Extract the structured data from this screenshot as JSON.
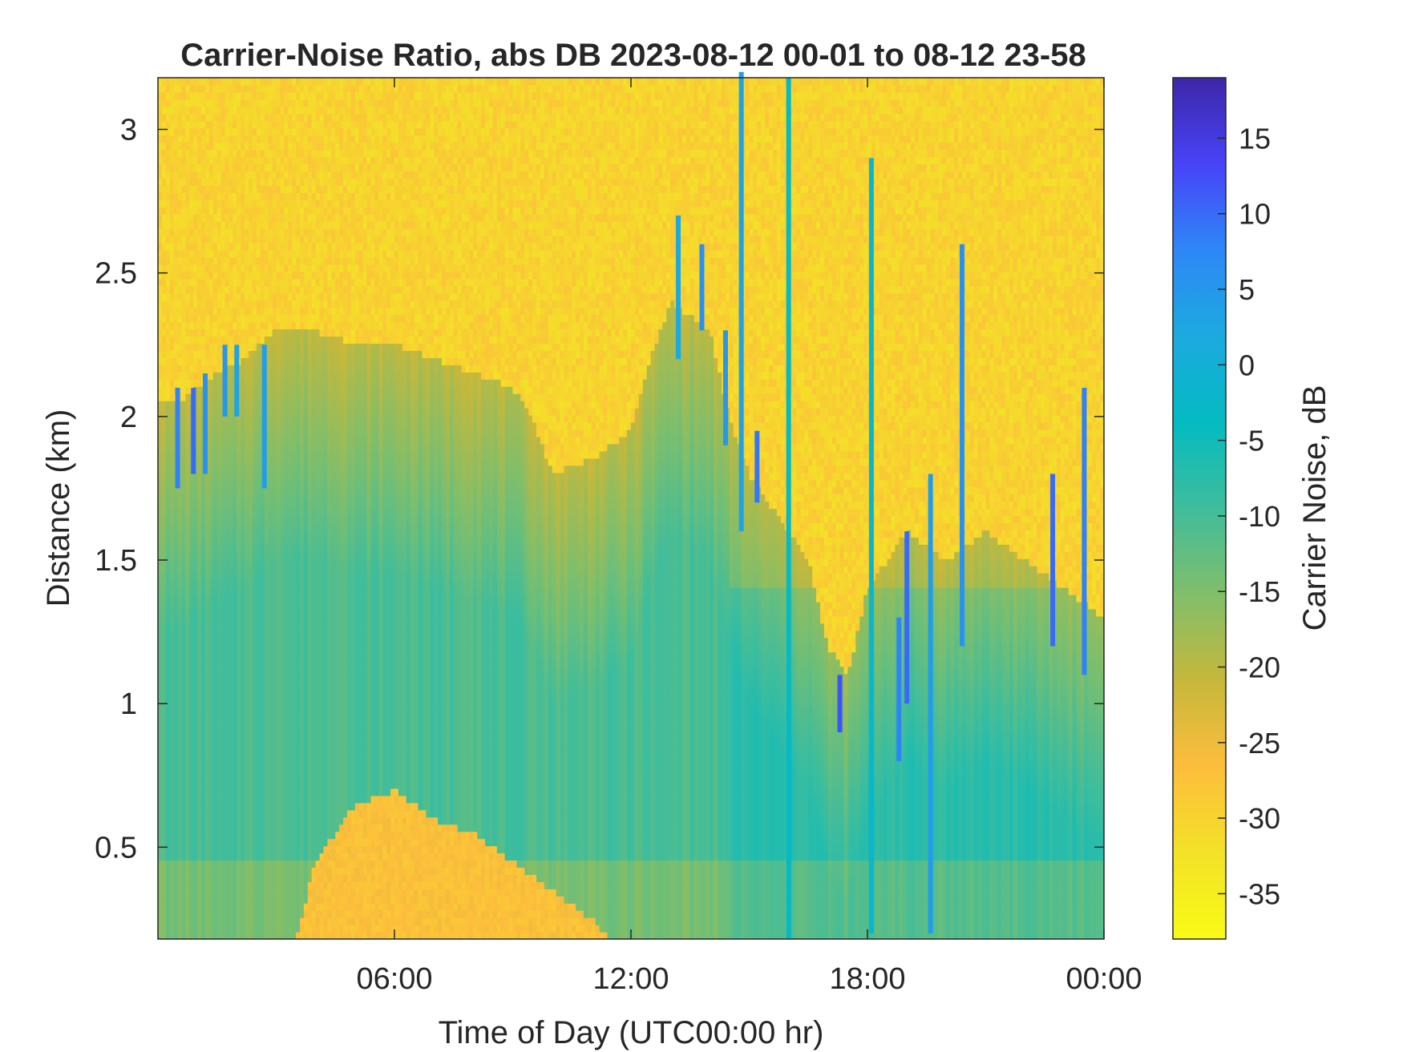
{
  "chart_data": {
    "type": "heatmap",
    "title": "Carrier-Noise Ratio, abs DB 2023-08-12 00-01 to 08-12 23-58",
    "xlabel": "Time of Day (UTC00:00 hr)",
    "ylabel": "Distance (km)",
    "colorbar_label": "Carrier Noise, dB",
    "xlim_hours": [
      0,
      24
    ],
    "ylim_km": [
      0.18,
      3.18
    ],
    "clim_db": [
      -38,
      19
    ],
    "xticks": [
      {
        "hour": 6,
        "label": "06:00"
      },
      {
        "hour": 12,
        "label": "12:00"
      },
      {
        "hour": 18,
        "label": "18:00"
      },
      {
        "hour": 24,
        "label": "00:00"
      }
    ],
    "yticks": [
      {
        "value": 0.5,
        "label": "0.5"
      },
      {
        "value": 1,
        "label": "1"
      },
      {
        "value": 1.5,
        "label": "1.5"
      },
      {
        "value": 2,
        "label": "2"
      },
      {
        "value": 2.5,
        "label": "2.5"
      },
      {
        "value": 3,
        "label": "3"
      }
    ],
    "colorbar_ticks": [
      {
        "value": 15,
        "label": "15"
      },
      {
        "value": 10,
        "label": "10"
      },
      {
        "value": 5,
        "label": "5"
      },
      {
        "value": 0,
        "label": "0"
      },
      {
        "value": -5,
        "label": "-5"
      },
      {
        "value": -10,
        "label": "-10"
      },
      {
        "value": -15,
        "label": "-15"
      },
      {
        "value": -20,
        "label": "-20"
      },
      {
        "value": -25,
        "label": "-25"
      },
      {
        "value": -30,
        "label": "-30"
      },
      {
        "value": -35,
        "label": "-35"
      }
    ],
    "colormap": "parula",
    "colormap_stops": [
      "#3e26a8",
      "#4743f7",
      "#2e87f7",
      "#1caadf",
      "#04bbc1",
      "#3fbd9c",
      "#81be6a",
      "#c6b83b",
      "#fdbd3c",
      "#f3e227",
      "#f9fb15"
    ],
    "signal_top_km": [
      {
        "hour": 0,
        "value": 2.05
      },
      {
        "hour": 0.5,
        "value": 2.05
      },
      {
        "hour": 1,
        "value": 2.1
      },
      {
        "hour": 1.5,
        "value": 2.15
      },
      {
        "hour": 2.2,
        "value": 2.2
      },
      {
        "hour": 3,
        "value": 2.3
      },
      {
        "hour": 4,
        "value": 2.3
      },
      {
        "hour": 5,
        "value": 2.25
      },
      {
        "hour": 6,
        "value": 2.25
      },
      {
        "hour": 7,
        "value": 2.2
      },
      {
        "hour": 8,
        "value": 2.15
      },
      {
        "hour": 9,
        "value": 2.1
      },
      {
        "hour": 9.5,
        "value": 2.0
      },
      {
        "hour": 10,
        "value": 1.8
      },
      {
        "hour": 11,
        "value": 1.85
      },
      {
        "hour": 12,
        "value": 1.95
      },
      {
        "hour": 12.5,
        "value": 2.2
      },
      {
        "hour": 13,
        "value": 2.4
      },
      {
        "hour": 14,
        "value": 2.3
      },
      {
        "hour": 14.5,
        "value": 2.0
      },
      {
        "hour": 15,
        "value": 1.8
      },
      {
        "hour": 15.5,
        "value": 1.7
      },
      {
        "hour": 16,
        "value": 1.6
      },
      {
        "hour": 16.5,
        "value": 1.5
      },
      {
        "hour": 17,
        "value": 1.2
      },
      {
        "hour": 17.5,
        "value": 1.1
      },
      {
        "hour": 18,
        "value": 1.4
      },
      {
        "hour": 18.5,
        "value": 1.5
      },
      {
        "hour": 19,
        "value": 1.6
      },
      {
        "hour": 20,
        "value": 1.5
      },
      {
        "hour": 21,
        "value": 1.6
      },
      {
        "hour": 22,
        "value": 1.5
      },
      {
        "hour": 23,
        "value": 1.4
      },
      {
        "hour": 24,
        "value": 1.3
      }
    ],
    "low_layer_top_km": [
      {
        "hour": 3.5,
        "value": 0.18
      },
      {
        "hour": 4,
        "value": 0.45
      },
      {
        "hour": 5,
        "value": 0.65
      },
      {
        "hour": 6,
        "value": 0.7
      },
      {
        "hour": 7,
        "value": 0.6
      },
      {
        "hour": 8,
        "value": 0.55
      },
      {
        "hour": 9,
        "value": 0.45
      },
      {
        "hour": 10,
        "value": 0.35
      },
      {
        "hour": 11,
        "value": 0.25
      },
      {
        "hour": 11.5,
        "value": 0.18
      }
    ],
    "spikes": [
      {
        "hour": 0.5,
        "from_km": 1.75,
        "to_km": 2.1,
        "db": 8
      },
      {
        "hour": 0.9,
        "from_km": 1.8,
        "to_km": 2.1,
        "db": 10
      },
      {
        "hour": 1.2,
        "from_km": 1.8,
        "to_km": 2.15,
        "db": 6
      },
      {
        "hour": 1.7,
        "from_km": 2.0,
        "to_km": 2.25,
        "db": 5
      },
      {
        "hour": 2.0,
        "from_km": 2.0,
        "to_km": 2.25,
        "db": 3
      },
      {
        "hour": 2.7,
        "from_km": 1.75,
        "to_km": 2.25,
        "db": 4
      },
      {
        "hour": 13.2,
        "from_km": 2.2,
        "to_km": 2.7,
        "db": 2
      },
      {
        "hour": 13.8,
        "from_km": 2.3,
        "to_km": 2.6,
        "db": 6
      },
      {
        "hour": 14.4,
        "from_km": 1.9,
        "to_km": 2.3,
        "db": 5
      },
      {
        "hour": 14.8,
        "from_km": 1.6,
        "to_km": 3.2,
        "db": 3
      },
      {
        "hour": 15.2,
        "from_km": 1.7,
        "to_km": 1.95,
        "db": 9
      },
      {
        "hour": 16.0,
        "from_km": 0.18,
        "to_km": 3.18,
        "db": -3
      },
      {
        "hour": 17.3,
        "from_km": 0.9,
        "to_km": 1.1,
        "db": 12
      },
      {
        "hour": 18.1,
        "from_km": 0.2,
        "to_km": 2.9,
        "db": -2
      },
      {
        "hour": 18.8,
        "from_km": 0.8,
        "to_km": 1.3,
        "db": 8
      },
      {
        "hour": 19.0,
        "from_km": 1.0,
        "to_km": 1.6,
        "db": 10
      },
      {
        "hour": 19.6,
        "from_km": 0.2,
        "to_km": 1.8,
        "db": 4
      },
      {
        "hour": 20.4,
        "from_km": 1.2,
        "to_km": 2.6,
        "db": 6
      },
      {
        "hour": 22.7,
        "from_km": 1.2,
        "to_km": 1.8,
        "db": 10
      },
      {
        "hour": 23.5,
        "from_km": 1.1,
        "to_km": 2.1,
        "db": 8
      }
    ]
  }
}
